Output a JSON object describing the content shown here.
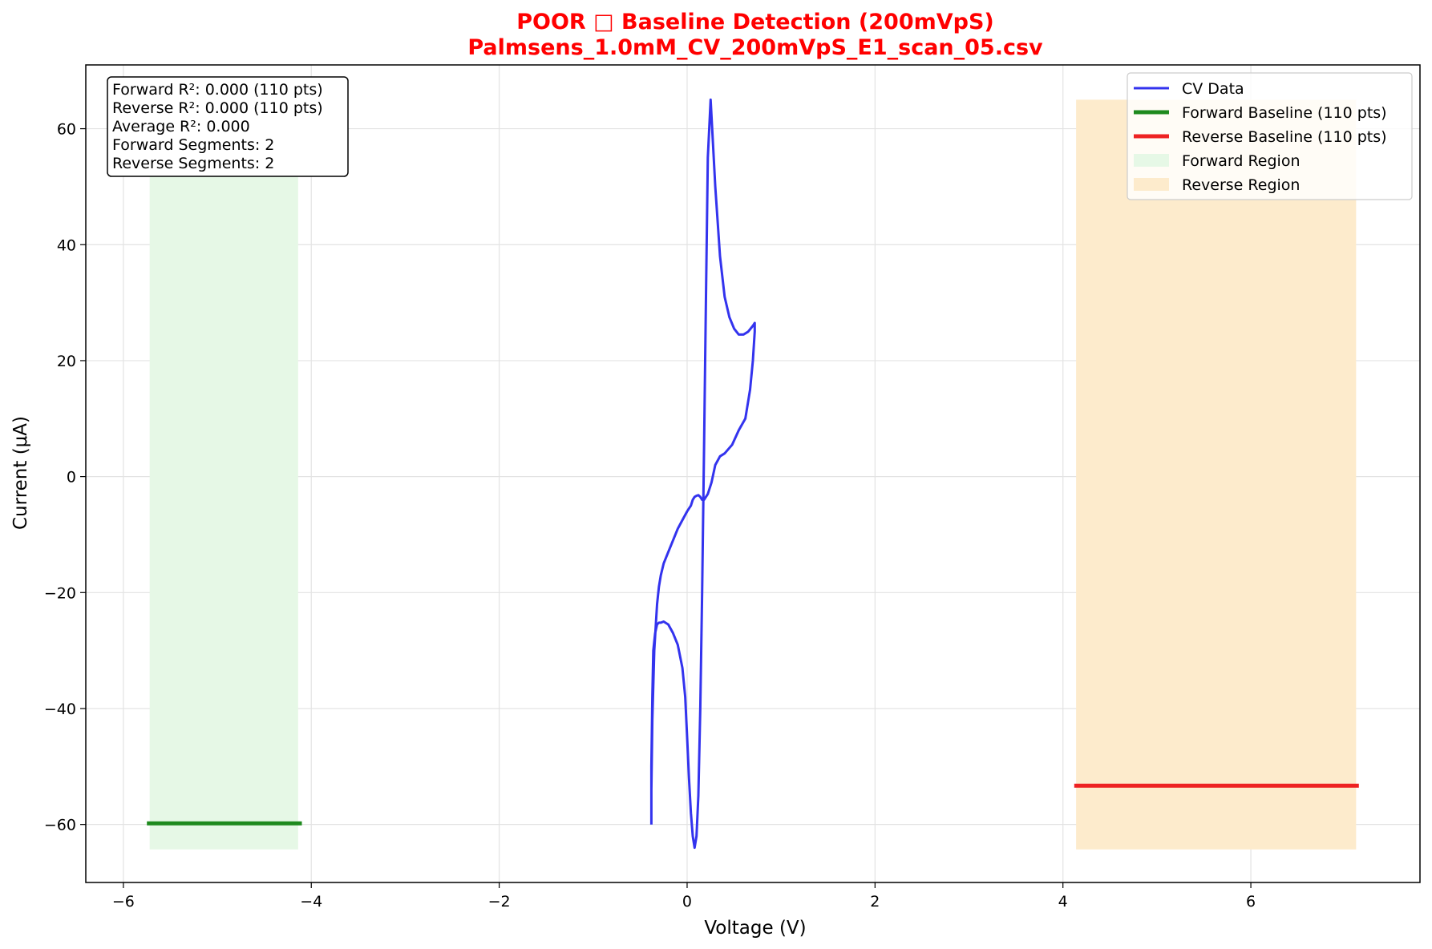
{
  "chart_data": {
    "type": "line",
    "title": "POOR □ Baseline Detection (200mVpS)",
    "subtitle": "Palmsens_1.0mM_CV_200mVpS_E1_scan_05.csv",
    "xlabel": "Voltage (V)",
    "ylabel": "Current (μA)",
    "xlim": [
      -6.4,
      7.8
    ],
    "ylim": [
      -70,
      71
    ],
    "xticks": [
      -6,
      -4,
      -2,
      0,
      2,
      4,
      6
    ],
    "yticks": [
      -60,
      -40,
      -20,
      0,
      20,
      40,
      60
    ],
    "xtick_labels": [
      "−6",
      "−4",
      "−2",
      "0",
      "2",
      "4",
      "6"
    ],
    "ytick_labels": [
      "−60",
      "−40",
      "−20",
      "0",
      "20",
      "40",
      "60"
    ],
    "grid": true,
    "legend_position": "top-right",
    "colors": {
      "cv": "#3333ee",
      "forward_baseline": "#1e8a1e",
      "reverse_baseline": "#ee2222",
      "forward_region": "#e6f8e6",
      "reverse_region": "#fdebcc",
      "title": "#ff0000"
    },
    "series": [
      {
        "name": "CV Data",
        "x": [
          -0.38,
          -0.38,
          -0.37,
          -0.36,
          -0.34,
          -0.32,
          -0.3,
          -0.28,
          -0.25,
          -0.2,
          -0.15,
          -0.1,
          -0.05,
          -0.02,
          0.0,
          0.02,
          0.04,
          0.06,
          0.08,
          0.1,
          0.12,
          0.14,
          0.16,
          0.18,
          0.2,
          0.22,
          0.25,
          0.3,
          0.35,
          0.4,
          0.45,
          0.5,
          0.55,
          0.6,
          0.65,
          0.7,
          0.72,
          0.72,
          0.7,
          0.67,
          0.62,
          0.55,
          0.48,
          0.4,
          0.35,
          0.3,
          0.26,
          0.22,
          0.18,
          0.16,
          0.14,
          0.12,
          0.1,
          0.08,
          0.06,
          0.04,
          0.02,
          0.0,
          -0.05,
          -0.1,
          -0.15,
          -0.2,
          -0.25,
          -0.28,
          -0.3,
          -0.32,
          -0.35,
          -0.37,
          -0.38
        ],
        "y": [
          -60,
          -50,
          -38,
          -30,
          -27,
          -25.5,
          -25.2,
          -25.2,
          -25,
          -25.5,
          -27,
          -29,
          -33,
          -38,
          -45,
          -52,
          -58,
          -62,
          -64,
          -62,
          -55,
          -40,
          -20,
          5,
          30,
          55,
          65,
          50,
          38,
          31,
          27.5,
          25.5,
          24.5,
          24.5,
          25,
          26,
          26.5,
          25,
          20,
          15,
          10,
          8,
          5.5,
          4,
          3.5,
          2,
          -1,
          -3,
          -4,
          -4,
          -3.5,
          -3.2,
          -3.3,
          -3.5,
          -4,
          -5,
          -5.5,
          -6,
          -7.5,
          -9,
          -11,
          -13,
          -15,
          -17,
          -19,
          -22,
          -30,
          -42,
          -54
        ]
      },
      {
        "name": "Forward Baseline (110 pts)",
        "x": [
          -5.75,
          -4.1
        ],
        "y": [
          -59.8,
          -59.8
        ]
      },
      {
        "name": "Reverse Baseline (110 pts)",
        "x": [
          4.12,
          7.15
        ],
        "y": [
          -53.3,
          -53.3
        ]
      }
    ],
    "regions": [
      {
        "name": "Forward Region",
        "x": [
          -5.72,
          -4.14
        ],
        "y": [
          -64.3,
          65
        ]
      },
      {
        "name": "Reverse Region",
        "x": [
          4.14,
          7.12
        ],
        "y": [
          -64.3,
          65
        ]
      }
    ],
    "stats_box": [
      "Forward R²: 0.000 (110 pts)",
      "Reverse R²: 0.000 (110 pts)",
      "Average R²: 0.000",
      "Forward Segments: 2",
      "Reverse Segments: 2"
    ],
    "legend": [
      {
        "label": "CV Data",
        "kind": "line",
        "color_key": "cv"
      },
      {
        "label": "Forward Baseline (110 pts)",
        "kind": "thickline",
        "color_key": "forward_baseline"
      },
      {
        "label": "Reverse Baseline (110 pts)",
        "kind": "thickline",
        "color_key": "reverse_baseline"
      },
      {
        "label": "Forward Region",
        "kind": "patch",
        "color_key": "forward_region"
      },
      {
        "label": "Reverse Region",
        "kind": "patch",
        "color_key": "reverse_region"
      }
    ]
  }
}
